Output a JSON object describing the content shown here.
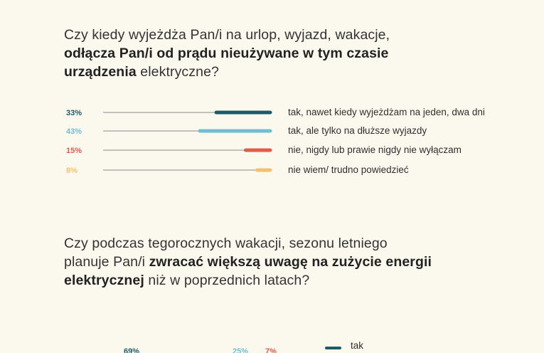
{
  "question1": {
    "p1": "Czy kiedy wyjeżdża Pan/i na urlop, wyjazd, wakacje,",
    "bold": "odłącza Pan/i od prądu nieużywane w tym czasie urządzenia",
    "rest": " elektryczne?"
  },
  "question2": {
    "p1": "Czy podczas tegorocznych wakacji, sezonu letniego planuje Pan/i ",
    "bold": "zwracać większą uwagę na zużycie energii elektrycznej",
    "rest": " niż w poprzednich latach?"
  },
  "chart_data": [
    {
      "type": "bar",
      "categories": [
        "tak, nawet kiedy wyjeżdżam na jeden, dwa dni",
        "tak, ale tylko na dłuższe wyjazdy",
        "nie, nigdy lub prawie nigdy nie wyłączam",
        "nie wiem/ trudno powiedzieć"
      ],
      "values": [
        33,
        43,
        15,
        8
      ],
      "value_labels": [
        "33%",
        "43%",
        "15%",
        "8%"
      ],
      "colors": [
        "#1d5a66",
        "#6fbfd3",
        "#e25a48",
        "#f2c26b"
      ],
      "unit": "%"
    },
    {
      "type": "bar",
      "value_labels": [
        "69%",
        "25%",
        "7%"
      ],
      "values": [
        69,
        25,
        7
      ],
      "legend": [
        "tak"
      ],
      "legend_colors": [
        "#1d5a66"
      ]
    }
  ]
}
